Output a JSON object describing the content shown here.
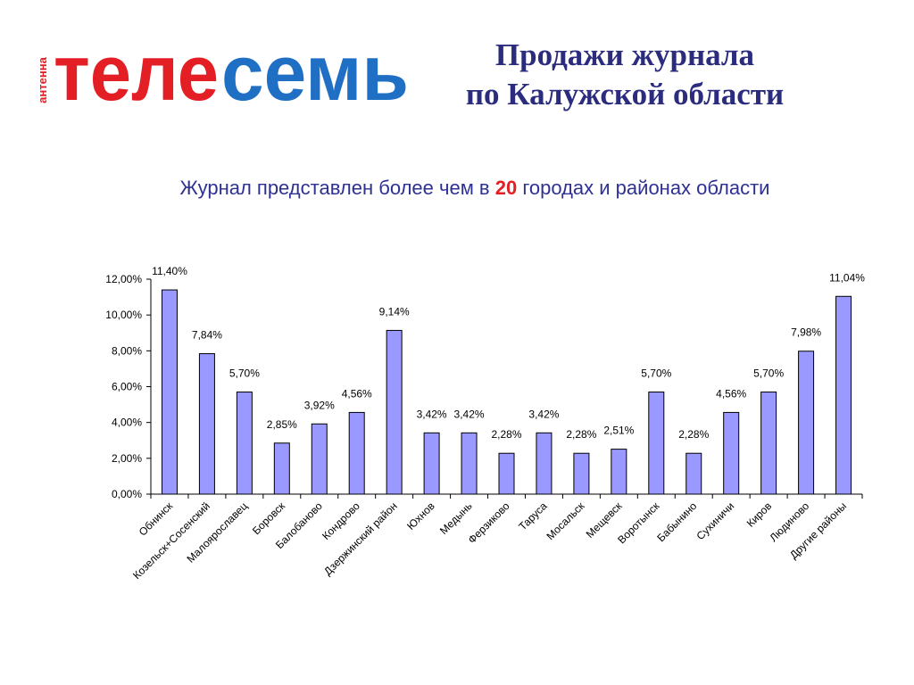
{
  "logo": {
    "small_text": "антенна",
    "red_text": "теле",
    "blue_text": "семь",
    "colors": {
      "red": "#e31e24",
      "blue": "#1f6fc4"
    }
  },
  "header": {
    "title_line1": "Продажи журнала",
    "title_line2": "по Калужской области"
  },
  "subtitle": {
    "before": "Журнал представлен более чем в ",
    "number": "20",
    "after": " городах и районах области"
  },
  "chart_data": {
    "type": "bar",
    "categories": [
      "Обнинск",
      "Козельск+Сосенский",
      "Малоярославец",
      "Боровск",
      "Балобаново",
      "Кондрово",
      "Дзержинский район",
      "Юхнов",
      "Медынь",
      "Ферзиково",
      "Таруса",
      "Мосальск",
      "Мещевск",
      "Воротынск",
      "Бабынино",
      "Сухиничи",
      "Киров",
      "Людиново",
      "Другие районы"
    ],
    "values": [
      11.4,
      7.84,
      5.7,
      2.85,
      3.92,
      4.56,
      9.14,
      3.42,
      3.42,
      2.28,
      3.42,
      2.28,
      2.51,
      5.7,
      2.28,
      4.56,
      5.7,
      7.98,
      11.04
    ],
    "data_labels": [
      "11,40%",
      "7,84%",
      "5,70%",
      "2,85%",
      "3,92%",
      "4,56%",
      "9,14%",
      "3,42%",
      "3,42%",
      "2,28%",
      "3,42%",
      "2,28%",
      "2,51%",
      "5,70%",
      "2,28%",
      "4,56%",
      "5,70%",
      "7,98%",
      "11,04%"
    ],
    "y_ticks": [
      "0,00%",
      "2,00%",
      "4,00%",
      "6,00%",
      "8,00%",
      "10,00%",
      "12,00%"
    ],
    "ylim": [
      0,
      12
    ],
    "grid": false,
    "legend": "none",
    "colors": {
      "bar_fill": "#9999ff",
      "bar_stroke": "#000000"
    }
  }
}
